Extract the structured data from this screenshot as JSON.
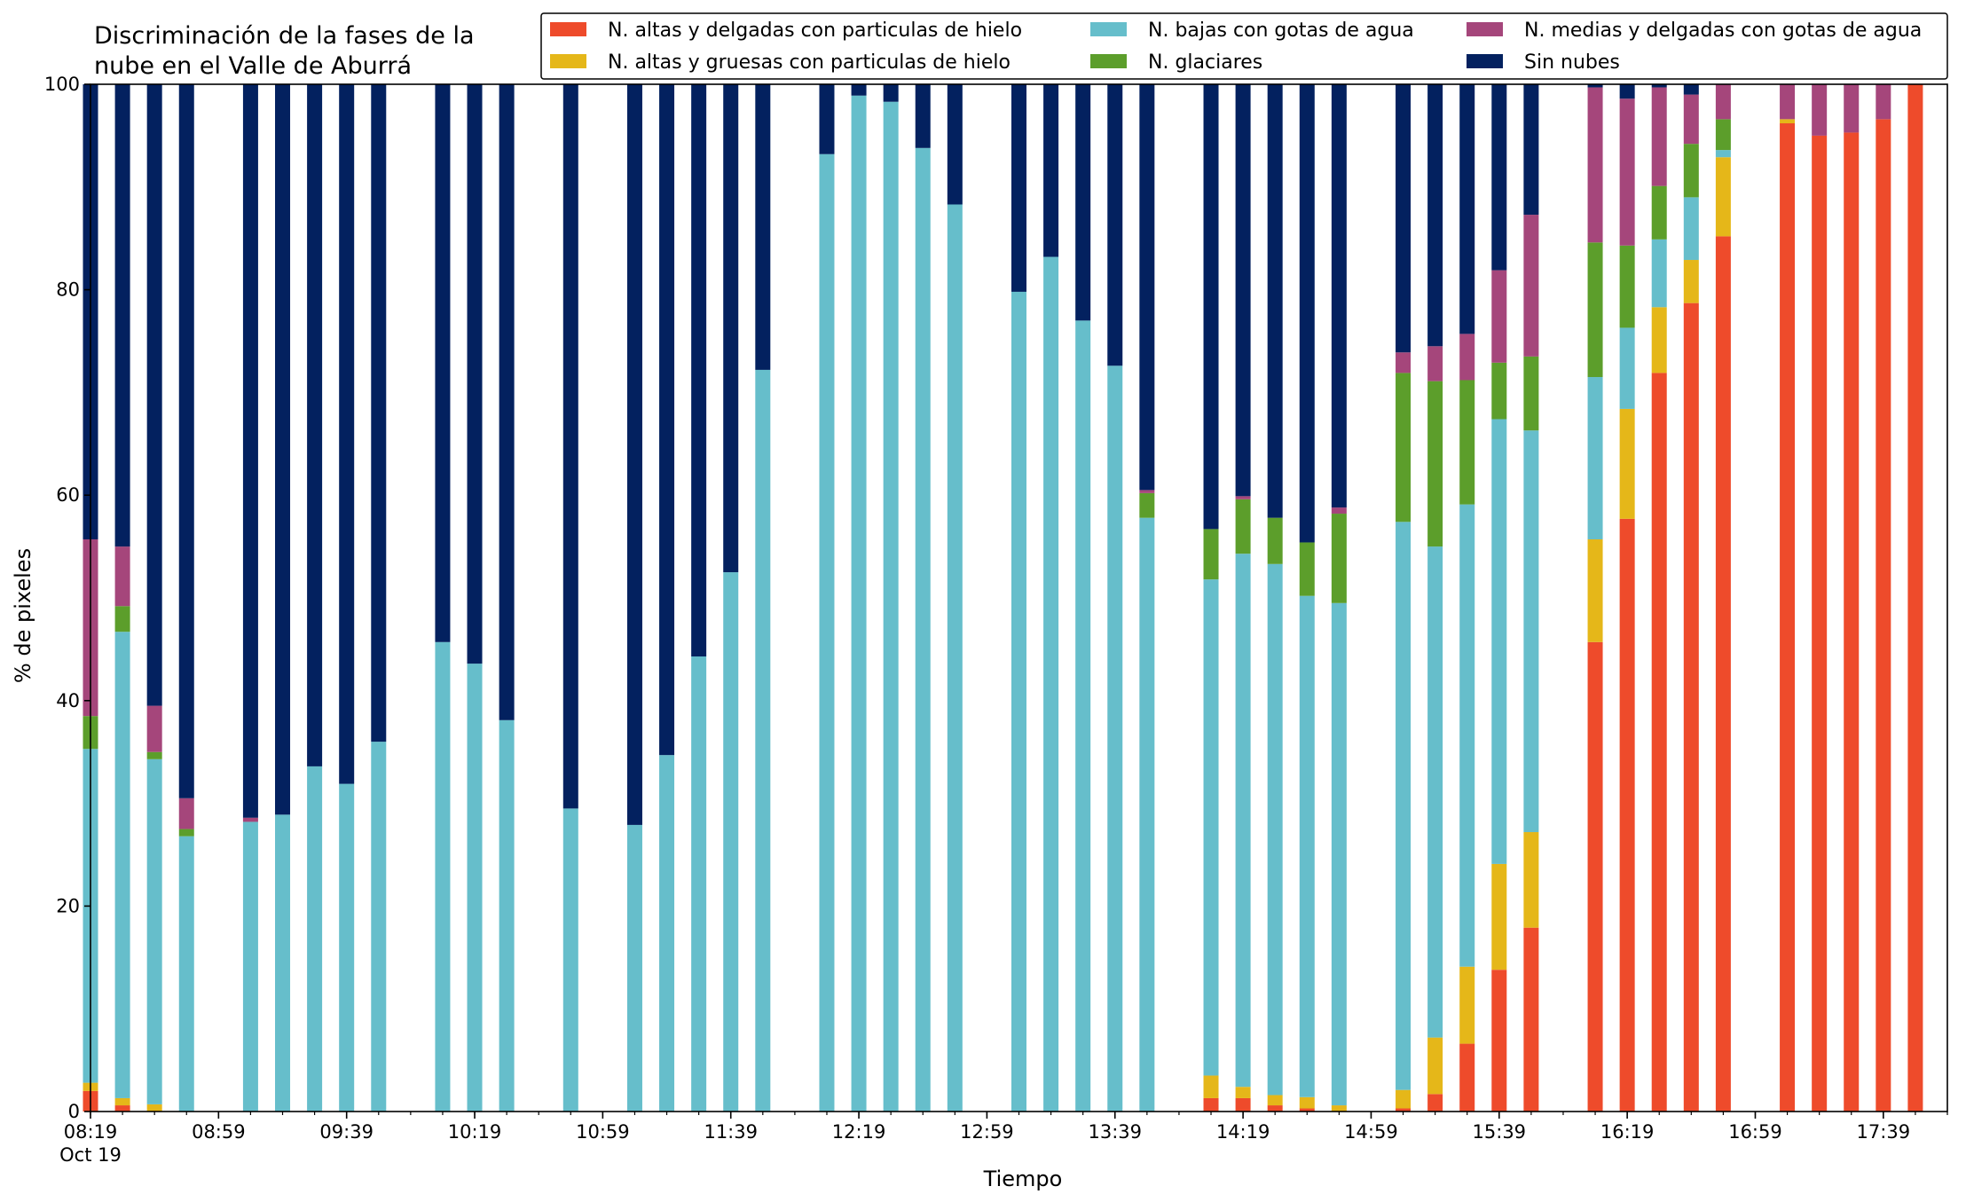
{
  "chart_data": {
    "type": "bar",
    "stacked": true,
    "title_lines": [
      "Discriminación de la fases de la",
      "nube en el Valle de Aburrá"
    ],
    "xlabel": "Tiempo",
    "ylabel": "% de pixeles",
    "ylim": [
      0,
      100
    ],
    "yticks": [
      0,
      20,
      40,
      60,
      80,
      100
    ],
    "grid": false,
    "legend_position": "top-right",
    "x_start": "08:19",
    "x_end": "17:59",
    "x_major_ticks": [
      {
        "time": "08:19",
        "label": "08:19",
        "sublabel": "Oct 19"
      },
      {
        "time": "08:59",
        "label": "08:59"
      },
      {
        "time": "09:39",
        "label": "09:39"
      },
      {
        "time": "10:19",
        "label": "10:19"
      },
      {
        "time": "10:59",
        "label": "10:59"
      },
      {
        "time": "11:39",
        "label": "11:39"
      },
      {
        "time": "12:19",
        "label": "12:19"
      },
      {
        "time": "12:59",
        "label": "12:59"
      },
      {
        "time": "13:39",
        "label": "13:39"
      },
      {
        "time": "14:19",
        "label": "14:19"
      },
      {
        "time": "14:59",
        "label": "14:59"
      },
      {
        "time": "15:39",
        "label": "15:39"
      },
      {
        "time": "16:19",
        "label": "16:19"
      },
      {
        "time": "16:59",
        "label": "16:59"
      },
      {
        "time": "17:39",
        "label": "17:39"
      }
    ],
    "series": [
      {
        "name": "N. altas y delgadas con particulas de hielo",
        "color": "#EE4B2B"
      },
      {
        "name": "N. altas y gruesas con particulas de hielo",
        "color": "#E5B719"
      },
      {
        "name": "N. bajas con gotas de agua",
        "color": "#66BECB"
      },
      {
        "name": "N. glaciares",
        "color": "#5C9E2B"
      },
      {
        "name": "N. medias y delgadas con gotas de agua",
        "color": "#A5467B"
      },
      {
        "name": "Sin nubes",
        "color": "#03215F"
      }
    ],
    "bars": [
      {
        "time": "08:19",
        "values": [
          2.0,
          0.8,
          32.5,
          3.2,
          17.2,
          44.3
        ]
      },
      {
        "time": "08:29",
        "values": [
          0.6,
          0.7,
          45.4,
          2.5,
          5.8,
          45.0
        ]
      },
      {
        "time": "08:39",
        "values": [
          0.0,
          0.7,
          33.6,
          0.7,
          4.5,
          60.5
        ]
      },
      {
        "time": "08:49",
        "values": [
          0.0,
          0.0,
          26.8,
          0.7,
          3.0,
          69.5
        ]
      },
      {
        "time": "09:09",
        "values": [
          0.0,
          0.0,
          28.2,
          0.0,
          0.4,
          71.4
        ]
      },
      {
        "time": "09:19",
        "values": [
          0.0,
          0.0,
          28.9,
          0.0,
          0.0,
          71.1
        ]
      },
      {
        "time": "09:29",
        "values": [
          0.0,
          0.0,
          33.6,
          0.0,
          0.0,
          66.4
        ]
      },
      {
        "time": "09:39",
        "values": [
          0.0,
          0.0,
          31.9,
          0.0,
          0.0,
          68.1
        ]
      },
      {
        "time": "09:49",
        "values": [
          0.0,
          0.0,
          36.0,
          0.0,
          0.0,
          64.0
        ]
      },
      {
        "time": "10:09",
        "values": [
          0.0,
          0.0,
          45.7,
          0.0,
          0.0,
          54.3
        ]
      },
      {
        "time": "10:19",
        "values": [
          0.0,
          0.0,
          43.6,
          0.0,
          0.0,
          56.4
        ]
      },
      {
        "time": "10:29",
        "values": [
          0.0,
          0.0,
          38.1,
          0.0,
          0.0,
          61.9
        ]
      },
      {
        "time": "10:49",
        "values": [
          0.0,
          0.0,
          29.5,
          0.0,
          0.0,
          70.5
        ]
      },
      {
        "time": "11:09",
        "values": [
          0.0,
          0.0,
          27.9,
          0.0,
          0.0,
          72.1
        ]
      },
      {
        "time": "11:19",
        "values": [
          0.0,
          0.0,
          34.7,
          0.0,
          0.0,
          65.3
        ]
      },
      {
        "time": "11:29",
        "values": [
          0.0,
          0.0,
          44.3,
          0.0,
          0.0,
          55.7
        ]
      },
      {
        "time": "11:39",
        "values": [
          0.0,
          0.0,
          52.5,
          0.0,
          0.0,
          47.5
        ]
      },
      {
        "time": "11:49",
        "values": [
          0.0,
          0.0,
          72.2,
          0.0,
          0.0,
          27.8
        ]
      },
      {
        "time": "12:09",
        "values": [
          0.0,
          0.0,
          93.2,
          0.0,
          0.0,
          6.8
        ]
      },
      {
        "time": "12:19",
        "values": [
          0.0,
          0.0,
          98.9,
          0.0,
          0.0,
          1.1
        ]
      },
      {
        "time": "12:29",
        "values": [
          0.0,
          0.0,
          98.3,
          0.0,
          0.0,
          1.7
        ]
      },
      {
        "time": "12:39",
        "values": [
          0.0,
          0.0,
          93.8,
          0.0,
          0.0,
          6.2
        ]
      },
      {
        "time": "12:49",
        "values": [
          0.0,
          0.0,
          88.3,
          0.0,
          0.0,
          11.7
        ]
      },
      {
        "time": "13:09",
        "values": [
          0.0,
          0.0,
          79.8,
          0.0,
          0.0,
          20.2
        ]
      },
      {
        "time": "13:19",
        "values": [
          0.0,
          0.0,
          83.2,
          0.0,
          0.0,
          16.8
        ]
      },
      {
        "time": "13:29",
        "values": [
          0.0,
          0.0,
          77.0,
          0.0,
          0.0,
          23.0
        ]
      },
      {
        "time": "13:39",
        "values": [
          0.0,
          0.0,
          72.6,
          0.0,
          0.0,
          27.4
        ]
      },
      {
        "time": "13:49",
        "values": [
          0.0,
          0.0,
          57.8,
          2.4,
          0.3,
          39.5
        ]
      },
      {
        "time": "14:09",
        "values": [
          1.3,
          2.2,
          48.3,
          4.9,
          0.0,
          43.3
        ]
      },
      {
        "time": "14:19",
        "values": [
          1.3,
          1.1,
          51.9,
          5.3,
          0.3,
          40.1
        ]
      },
      {
        "time": "14:29",
        "values": [
          0.6,
          1.0,
          51.7,
          4.5,
          0.0,
          42.2
        ]
      },
      {
        "time": "14:39",
        "values": [
          0.3,
          1.1,
          48.8,
          5.2,
          0.0,
          44.6
        ]
      },
      {
        "time": "14:49",
        "values": [
          0.0,
          0.6,
          48.9,
          8.7,
          0.6,
          41.2
        ]
      },
      {
        "time": "15:09",
        "values": [
          0.3,
          1.8,
          55.3,
          14.5,
          2.0,
          26.1
        ]
      },
      {
        "time": "15:19",
        "values": [
          1.7,
          5.5,
          47.8,
          16.1,
          3.4,
          25.5
        ]
      },
      {
        "time": "15:29",
        "values": [
          6.6,
          7.5,
          45.0,
          12.1,
          4.5,
          24.3
        ]
      },
      {
        "time": "15:39",
        "values": [
          13.8,
          10.3,
          43.3,
          5.5,
          9.0,
          18.1
        ]
      },
      {
        "time": "15:49",
        "values": [
          17.9,
          9.3,
          39.1,
          7.2,
          13.8,
          12.7
        ]
      },
      {
        "time": "16:09",
        "values": [
          45.7,
          10.0,
          15.8,
          13.1,
          15.1,
          0.3
        ]
      },
      {
        "time": "16:19",
        "values": [
          57.7,
          10.7,
          7.9,
          8.0,
          14.3,
          1.4
        ]
      },
      {
        "time": "16:29",
        "values": [
          71.9,
          6.4,
          6.6,
          5.2,
          9.6,
          0.3
        ]
      },
      {
        "time": "16:39",
        "values": [
          78.7,
          4.2,
          6.1,
          5.2,
          4.8,
          1.0
        ]
      },
      {
        "time": "16:49",
        "values": [
          85.2,
          7.7,
          0.7,
          3.0,
          3.4,
          0.0
        ]
      },
      {
        "time": "17:09",
        "values": [
          96.2,
          0.4,
          0.0,
          0.0,
          3.4,
          0.0
        ]
      },
      {
        "time": "17:19",
        "values": [
          95.0,
          0.0,
          0.0,
          0.0,
          5.0,
          0.0
        ]
      },
      {
        "time": "17:29",
        "values": [
          95.3,
          0.0,
          0.0,
          0.0,
          4.7,
          0.0
        ]
      },
      {
        "time": "17:39",
        "values": [
          96.6,
          0.0,
          0.0,
          0.0,
          3.4,
          0.0
        ]
      },
      {
        "time": "17:49",
        "values": [
          100.0,
          0.0,
          0.0,
          0.0,
          0.0,
          0.0
        ]
      }
    ]
  }
}
